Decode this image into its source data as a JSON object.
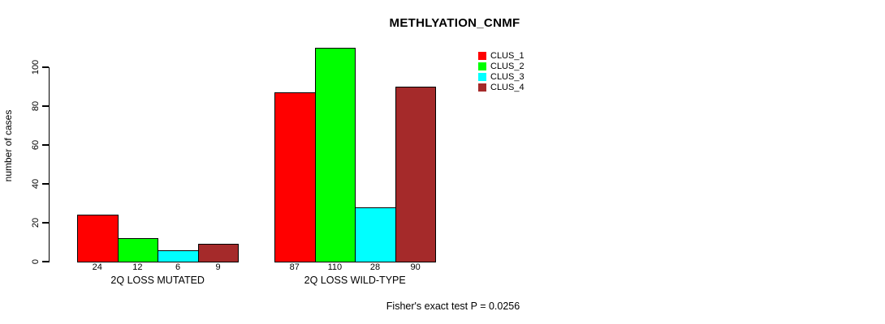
{
  "chart_data": {
    "type": "bar",
    "title": "METHLYATION_CNMF",
    "ylabel": "number of cases",
    "xlabel": "",
    "annotation": "Fisher's exact test P = 0.0256",
    "categories": [
      "2Q LOSS MUTATED",
      "2Q LOSS WILD-TYPE"
    ],
    "series": [
      {
        "name": "CLUS_1",
        "color": "#FF0000",
        "values": [
          24,
          87
        ]
      },
      {
        "name": "CLUS_2",
        "color": "#00FF00",
        "values": [
          12,
          110
        ]
      },
      {
        "name": "CLUS_3",
        "color": "#00FFFF",
        "values": [
          6,
          28
        ]
      },
      {
        "name": "CLUS_4",
        "color": "#A52A2A",
        "values": [
          9,
          90
        ]
      }
    ],
    "yticks": [
      0,
      20,
      40,
      60,
      80,
      100
    ],
    "ylim": [
      0,
      110
    ],
    "grid": false,
    "legend_position": "top-right",
    "bar_border_color": "#000000",
    "value_labels_shown": true
  }
}
